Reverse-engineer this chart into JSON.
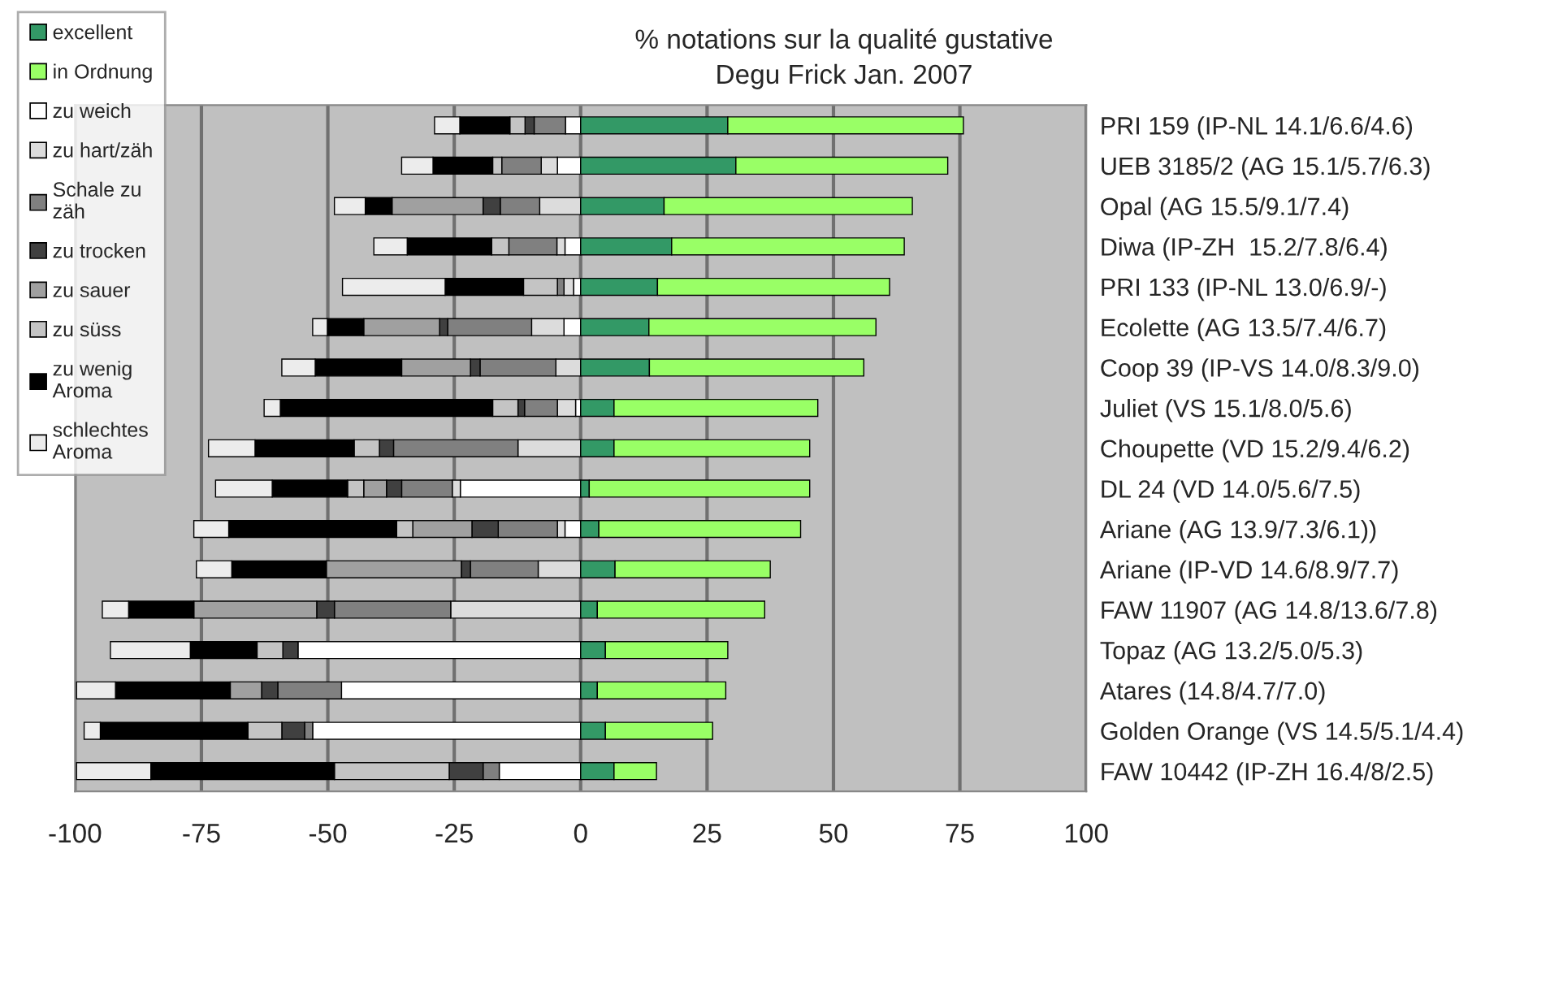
{
  "chart_data": {
    "type": "bar",
    "orientation": "horizontal",
    "stacked": true,
    "title": "% notations sur la qualité gustative",
    "subtitle": "Degu Frick Jan. 2007",
    "categories": [
      "PRI 159 (IP-NL 14.1/6.6/4.6)",
      "UEB 3185/2 (AG 15.1/5.7/6.3)",
      "Opal (AG 15.5/9.1/7.4)",
      "Diwa (IP-ZH  15.2/7.8/6.4)",
      "PRI 133 (IP-NL 13.0/6.9/-)",
      "Ecolette (AG 13.5/7.4/6.7)",
      "Coop 39 (IP-VS 14.0/8.3/9.0)",
      "Juliet (VS 15.1/8.0/5.6)",
      "Choupette (VD 15.2/9.4/6.2)",
      "DL 24 (VD 14.0/5.6/7.5)",
      "Ariane (AG 13.9/7.3/6.1))",
      "Ariane (IP-VD 14.6/8.9/7.7)",
      "FAW 11907 (AG 14.8/13.6/7.8)",
      "Topaz (AG 13.2/5.0/5.3)",
      "Atares (14.8/4.7/7.0)",
      "Golden Orange (VS 14.5/5.1/4.4)",
      "FAW 10442 (IP-ZH 16.4/8/2.5)"
    ],
    "series": [
      {
        "name": "zu weich",
        "color": "#ffffff",
        "values": [
          -3.0,
          -4.6,
          0,
          -3.1,
          -1.4,
          -3.3,
          0,
          -1.0,
          0,
          -23.8,
          -3.1,
          0,
          0,
          -55.9,
          -47.3,
          -53.0,
          -16.1
        ]
      },
      {
        "name": "zu hart/zäh",
        "color": "#dcdcdc",
        "values": [
          0,
          -3.2,
          -8.1,
          -1.6,
          -1.9,
          -6.4,
          -4.9,
          -3.6,
          -12.4,
          -1.6,
          -1.5,
          -8.4,
          -25.7,
          0,
          0,
          0,
          0
        ]
      },
      {
        "name": "Schale zu zäh",
        "color": "#808080",
        "values": [
          -6.2,
          -7.8,
          -7.8,
          -9.5,
          -1.3,
          -16.6,
          -15.0,
          -6.5,
          -24.6,
          -10.0,
          -11.7,
          -13.4,
          -23.0,
          0,
          -12.6,
          -1.6,
          -3.2
        ]
      },
      {
        "name": "zu trocken",
        "color": "#404040",
        "values": [
          -1.8,
          0,
          -3.4,
          0,
          0,
          -1.6,
          -1.9,
          -1.3,
          -2.8,
          -3.0,
          -5.2,
          -1.8,
          -3.5,
          -3.0,
          -3.2,
          -4.5,
          -6.7
        ]
      },
      {
        "name": "zu sauer",
        "color": "#a0a0a0",
        "values": [
          0,
          0,
          -18.0,
          0,
          0,
          -15.0,
          -13.6,
          0,
          0,
          -4.5,
          -11.7,
          -26.7,
          -24.3,
          0,
          -6.2,
          0,
          0
        ]
      },
      {
        "name": "zu süss",
        "color": "#c4c4c4",
        "values": [
          -3.0,
          -1.8,
          0,
          -3.4,
          -6.7,
          0,
          0,
          -5.0,
          -5.0,
          -3.2,
          -3.2,
          0,
          0,
          -5.1,
          0,
          -6.7,
          -22.7
        ]
      },
      {
        "name": "zu wenig Aroma",
        "color": "#000000",
        "values": [
          -9.9,
          -11.8,
          -5.3,
          -16.7,
          -15.5,
          -7.2,
          -17.1,
          -42.0,
          -19.6,
          -14.9,
          -33.2,
          -18.7,
          -12.9,
          -13.2,
          -22.7,
          -29.2,
          -36.3
        ]
      },
      {
        "name": "schlechtes Aroma",
        "color": "#ececec",
        "values": [
          -5.0,
          -6.2,
          -6.1,
          -6.6,
          -20.3,
          -2.9,
          -6.6,
          -3.2,
          -9.2,
          -11.2,
          -6.9,
          -7.0,
          -5.2,
          -15.8,
          -7.7,
          -3.2,
          -14.7
        ]
      },
      {
        "name": "excellent",
        "color": "#339966",
        "values": [
          29.1,
          30.7,
          16.5,
          18.0,
          15.2,
          13.5,
          13.6,
          6.6,
          6.6,
          1.7,
          3.6,
          6.8,
          3.3,
          4.9,
          3.3,
          4.9,
          6.6
        ]
      },
      {
        "name": "in Ordnung",
        "color": "#99ff66",
        "values": [
          46.6,
          41.9,
          49.1,
          46.0,
          45.9,
          44.9,
          42.4,
          40.3,
          38.7,
          43.6,
          39.9,
          30.7,
          33.1,
          24.2,
          25.4,
          21.2,
          8.4
        ]
      }
    ],
    "xlim": [
      -100,
      100
    ],
    "xticks": [
      -100,
      -75,
      -50,
      -25,
      0,
      25,
      50,
      75,
      100
    ],
    "grid": "x",
    "legend": "top left"
  }
}
